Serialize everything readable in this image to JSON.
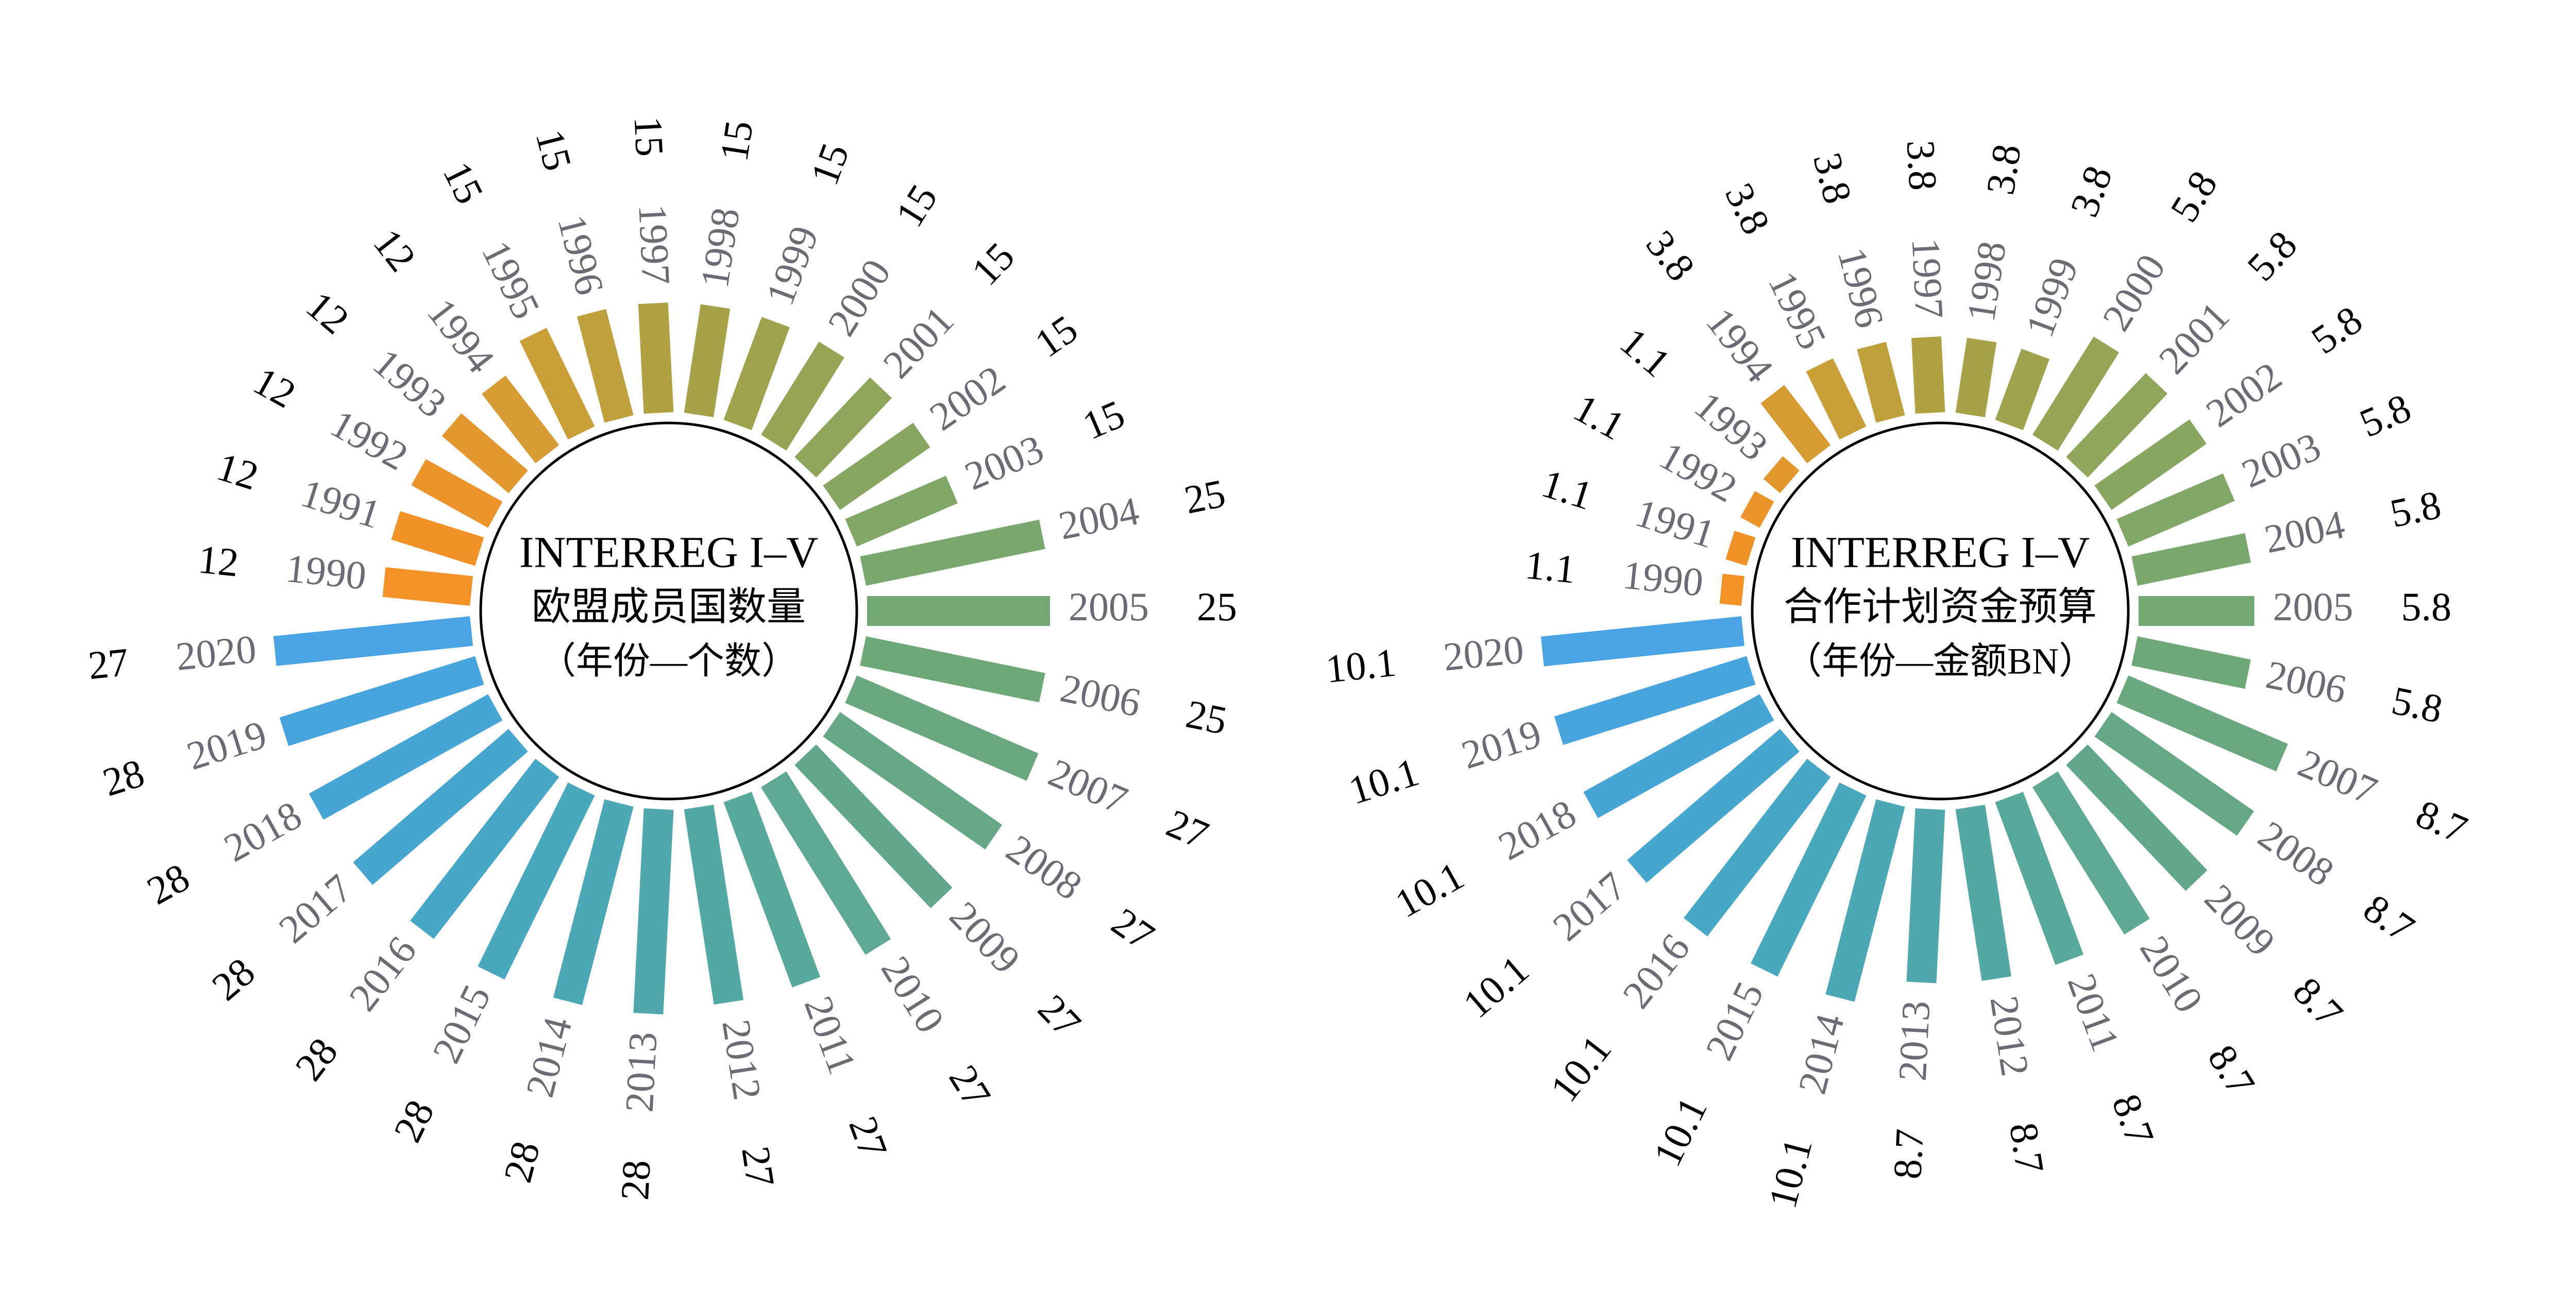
{
  "chart_data": [
    {
      "type": "radial-bar",
      "title": "INTERREG I–V",
      "subtitle": "欧盟成员国数量",
      "note": "（年份—个数）",
      "categories": [
        "1990",
        "1991",
        "1992",
        "1993",
        "1994",
        "1995",
        "1996",
        "1997",
        "1998",
        "1999",
        "2000",
        "2001",
        "2002",
        "2003",
        "2004",
        "2005",
        "2006",
        "2007",
        "2008",
        "2009",
        "2010",
        "2011",
        "2012",
        "2013",
        "2014",
        "2015",
        "2016",
        "2017",
        "2018",
        "2019",
        "2020"
      ],
      "values": [
        12,
        12,
        12,
        12,
        12,
        15,
        15,
        15,
        15,
        15,
        15,
        15,
        15,
        15,
        25,
        25,
        25,
        27,
        27,
        27,
        27,
        27,
        27,
        28,
        28,
        28,
        28,
        28,
        28,
        28,
        27
      ],
      "colors": [
        "#f39226",
        "#f09228",
        "#eb942b",
        "#e3982f",
        "#d69c33",
        "#c99f37",
        "#bea03c",
        "#b0a143",
        "#a6a249",
        "#9fa34e",
        "#97a455",
        "#90a55c",
        "#88a662",
        "#81a668",
        "#79a76e",
        "#73a773",
        "#6ea778",
        "#6aa77e",
        "#66a785",
        "#62a78c",
        "#5ea894",
        "#59a89c",
        "#54a8a4",
        "#50a8ac",
        "#4da8b5",
        "#4aa8bd",
        "#48a7c5",
        "#47a6cd",
        "#47a5d5",
        "#48a4dc",
        "#4aa3e2"
      ],
      "ylim": [
        0,
        30
      ]
    },
    {
      "type": "radial-bar",
      "title": "INTERREG I–V",
      "subtitle": "合作计划资金预算",
      "note": "（年份—金额BN）",
      "categories": [
        "1990",
        "1991",
        "1992",
        "1993",
        "1994",
        "1995",
        "1996",
        "1997",
        "1998",
        "1999",
        "2000",
        "2001",
        "2002",
        "2003",
        "2004",
        "2005",
        "2006",
        "2007",
        "2008",
        "2009",
        "2010",
        "2011",
        "2012",
        "2013",
        "2014",
        "2015",
        "2016",
        "2017",
        "2018",
        "2019",
        "2020"
      ],
      "values": [
        1.1,
        1.1,
        1.1,
        1.1,
        3.8,
        3.8,
        3.8,
        3.8,
        3.8,
        3.8,
        5.8,
        5.8,
        5.8,
        5.8,
        5.8,
        5.8,
        5.8,
        8.7,
        8.7,
        8.7,
        8.7,
        8.7,
        8.7,
        8.7,
        10.1,
        10.1,
        10.1,
        10.1,
        10.1,
        10.1,
        10.1
      ],
      "colors": [
        "#f39226",
        "#f09228",
        "#eb942b",
        "#e3982f",
        "#d69c33",
        "#c99f37",
        "#bea03c",
        "#b0a143",
        "#a6a249",
        "#9fa34e",
        "#97a455",
        "#90a55c",
        "#88a662",
        "#81a668",
        "#79a76e",
        "#73a773",
        "#6ea778",
        "#6aa77e",
        "#66a785",
        "#62a78c",
        "#5ea894",
        "#59a89c",
        "#54a8a4",
        "#50a8ac",
        "#4da8b5",
        "#4aa8bd",
        "#48a7c5",
        "#47a6cd",
        "#47a5d5",
        "#48a4dc",
        "#4aa3e2"
      ],
      "ylim": [
        0,
        11
      ]
    }
  ]
}
